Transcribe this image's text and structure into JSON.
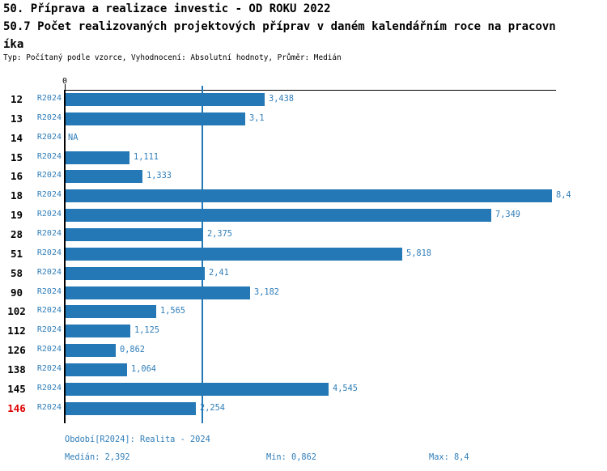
{
  "header": {
    "line1": "50. Příprava a realizace investic - OD ROKU 2022",
    "line2": "50.7 Počet realizovaných projektových příprav v daném kalendářním roce na pracovn",
    "line3": "íka",
    "subtitle": "Typ: Počítaný podle vzorce, Vyhodnocení: Absolutní hodnoty, Průměr: Medián"
  },
  "chart_data": {
    "type": "bar",
    "orientation": "horizontal",
    "value_axis": {
      "zero_label": "0",
      "xlim": [
        0,
        8.4
      ],
      "grid": false
    },
    "median_line_value": 2.392,
    "series_label": "R2024",
    "categories": [
      "12",
      "13",
      "14",
      "15",
      "16",
      "18",
      "19",
      "28",
      "51",
      "58",
      "90",
      "102",
      "112",
      "126",
      "138",
      "145",
      "146"
    ],
    "rows": [
      {
        "category": "12",
        "period": "R2024",
        "value": 3.438,
        "value_label": "3,438",
        "highlight": false
      },
      {
        "category": "13",
        "period": "R2024",
        "value": 3.1,
        "value_label": "3,1",
        "highlight": false
      },
      {
        "category": "14",
        "period": "R2024",
        "value": null,
        "value_label": "NA",
        "highlight": false
      },
      {
        "category": "15",
        "period": "R2024",
        "value": 1.111,
        "value_label": "1,111",
        "highlight": false
      },
      {
        "category": "16",
        "period": "R2024",
        "value": 1.333,
        "value_label": "1,333",
        "highlight": false
      },
      {
        "category": "18",
        "period": "R2024",
        "value": 8.4,
        "value_label": "8,4",
        "highlight": false
      },
      {
        "category": "19",
        "period": "R2024",
        "value": 7.349,
        "value_label": "7,349",
        "highlight": false
      },
      {
        "category": "28",
        "period": "R2024",
        "value": 2.375,
        "value_label": "2,375",
        "highlight": false
      },
      {
        "category": "51",
        "period": "R2024",
        "value": 5.818,
        "value_label": "5,818",
        "highlight": false
      },
      {
        "category": "58",
        "period": "R2024",
        "value": 2.41,
        "value_label": "2,41",
        "highlight": false
      },
      {
        "category": "90",
        "period": "R2024",
        "value": 3.182,
        "value_label": "3,182",
        "highlight": false
      },
      {
        "category": "102",
        "period": "R2024",
        "value": 1.565,
        "value_label": "1,565",
        "highlight": false
      },
      {
        "category": "112",
        "period": "R2024",
        "value": 1.125,
        "value_label": "1,125",
        "highlight": false
      },
      {
        "category": "126",
        "period": "R2024",
        "value": 0.862,
        "value_label": "0,862",
        "highlight": false
      },
      {
        "category": "138",
        "period": "R2024",
        "value": 1.064,
        "value_label": "1,064",
        "highlight": false
      },
      {
        "category": "145",
        "period": "R2024",
        "value": 4.545,
        "value_label": "4,545",
        "highlight": false
      },
      {
        "category": "146",
        "period": "R2024",
        "value": 2.254,
        "value_label": "2,254",
        "highlight": true
      }
    ],
    "colors": {
      "bar": "#2478b5",
      "label_text": "#2f7db8",
      "highlight_text": "#dd0000",
      "axis": "#000000"
    }
  },
  "footer": {
    "period": "Období[R2024]: Realita - 2024",
    "median": "Medián: 2,392",
    "min": "Min: 0,862",
    "max": "Max: 8,4"
  }
}
